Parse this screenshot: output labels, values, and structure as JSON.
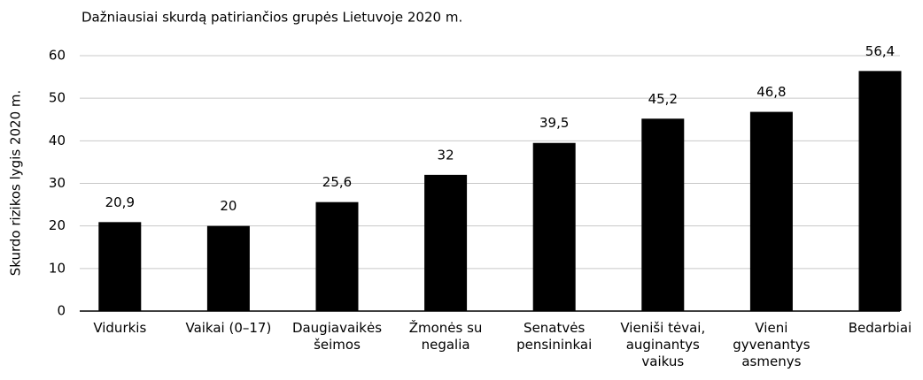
{
  "chart_data": {
    "type": "bar",
    "title": "Dažniausiai skurdą patiriančios grupės Lietuvoje 2020 m.",
    "y_label": "Skurdo rizikos lygis 2020 m.",
    "categories": [
      "Vidurkis",
      "Vaikai (0–17)",
      "Daugiavaikės šeimos",
      "Žmonės su negalia",
      "Senatvės pensininkai",
      "Vieniši tėvai, auginantys vaikus",
      "Vieni gyvenantys asmenys",
      "Bedarbiai"
    ],
    "values": [
      20.9,
      20,
      25.6,
      32,
      39.5,
      45.2,
      46.8,
      56.4
    ],
    "value_labels": [
      "20,9",
      "20",
      "25,6",
      "32",
      "39,5",
      "45,2",
      "46,8",
      "56,4"
    ],
    "color": "#000000",
    "ylim": [
      0,
      60
    ],
    "yticks": [
      0,
      10,
      20,
      30,
      40,
      50,
      60
    ],
    "grid": true
  }
}
